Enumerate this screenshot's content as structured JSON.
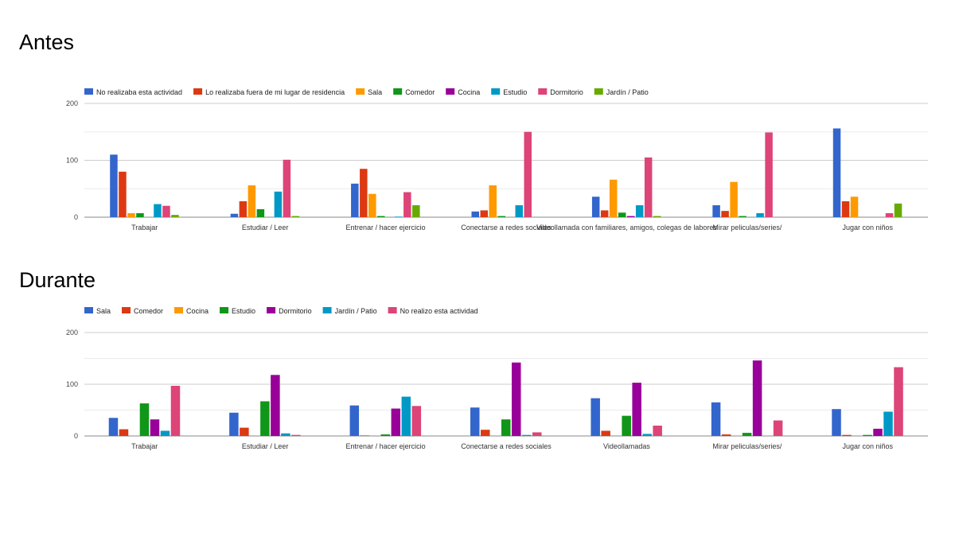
{
  "slide": {
    "title_before": "Antes",
    "title_during": "Durante"
  },
  "chart_data": [
    {
      "type": "bar",
      "title": "Antes",
      "ylim": [
        0,
        200
      ],
      "yticks": [
        0,
        100,
        200
      ],
      "categories": [
        "Trabajar",
        "Estudiar / Leer",
        "Entrenar / hacer ejercicio",
        "Conectarse a redes sociales",
        "Videollamada con familiares, amigos, colegas de labores",
        "Mirar peliculas/series/",
        "Jugar con niños"
      ],
      "legend_position": "top-left",
      "series": [
        {
          "name": "No realizaba esta actividad",
          "color": "#3366cc",
          "values": [
            110,
            6,
            59,
            10,
            36,
            21,
            156
          ]
        },
        {
          "name": "Lo realizaba fuera de mi lugar de residencia",
          "color": "#dc3912",
          "values": [
            80,
            28,
            85,
            12,
            12,
            11,
            28
          ]
        },
        {
          "name": "Sala",
          "color": "#ff9900",
          "values": [
            7,
            56,
            41,
            56,
            66,
            62,
            36
          ]
        },
        {
          "name": "Comedor",
          "color": "#109618",
          "values": [
            7,
            14,
            2,
            2,
            8,
            2,
            0
          ]
        },
        {
          "name": "Cocina",
          "color": "#990099",
          "values": [
            0,
            0,
            0,
            0,
            2,
            0,
            0
          ]
        },
        {
          "name": "Estudio",
          "color": "#0099c6",
          "values": [
            23,
            45,
            1,
            21,
            21,
            7,
            0
          ]
        },
        {
          "name": "Dormitorio",
          "color": "#dd4477",
          "values": [
            20,
            101,
            44,
            150,
            105,
            149,
            7
          ]
        },
        {
          "name": "Jardín / Patio",
          "color": "#66aa00",
          "values": [
            4,
            2,
            21,
            0,
            2,
            0,
            24
          ]
        }
      ]
    },
    {
      "type": "bar",
      "title": "Durante",
      "ylim": [
        0,
        200
      ],
      "yticks": [
        0,
        100,
        200
      ],
      "categories": [
        "Trabajar",
        "Estudiar / Leer",
        "Entrenar / hacer ejercicio",
        "Conectarse a redes sociales",
        "Videollamadas",
        "Mirar peliculas/series/",
        "Jugar con niños"
      ],
      "legend_position": "top-left",
      "series": [
        {
          "name": "Sala",
          "color": "#3366cc",
          "values": [
            35,
            45,
            59,
            55,
            73,
            65,
            52
          ]
        },
        {
          "name": "Comedor",
          "color": "#dc3912",
          "values": [
            13,
            16,
            1,
            12,
            10,
            3,
            2
          ]
        },
        {
          "name": "Cocina",
          "color": "#ff9900",
          "values": [
            0,
            0,
            0,
            0,
            0,
            0,
            0
          ]
        },
        {
          "name": "Estudio",
          "color": "#109618",
          "values": [
            63,
            67,
            3,
            32,
            39,
            6,
            2
          ]
        },
        {
          "name": "Dormitorio",
          "color": "#990099",
          "values": [
            32,
            118,
            53,
            142,
            103,
            146,
            14
          ]
        },
        {
          "name": "Jardín / Patio",
          "color": "#0099c6",
          "values": [
            10,
            5,
            76,
            2,
            4,
            0,
            47
          ]
        },
        {
          "name": "No realizo esta actividad",
          "color": "#dd4477",
          "values": [
            97,
            2,
            58,
            7,
            20,
            30,
            133
          ]
        }
      ]
    }
  ]
}
